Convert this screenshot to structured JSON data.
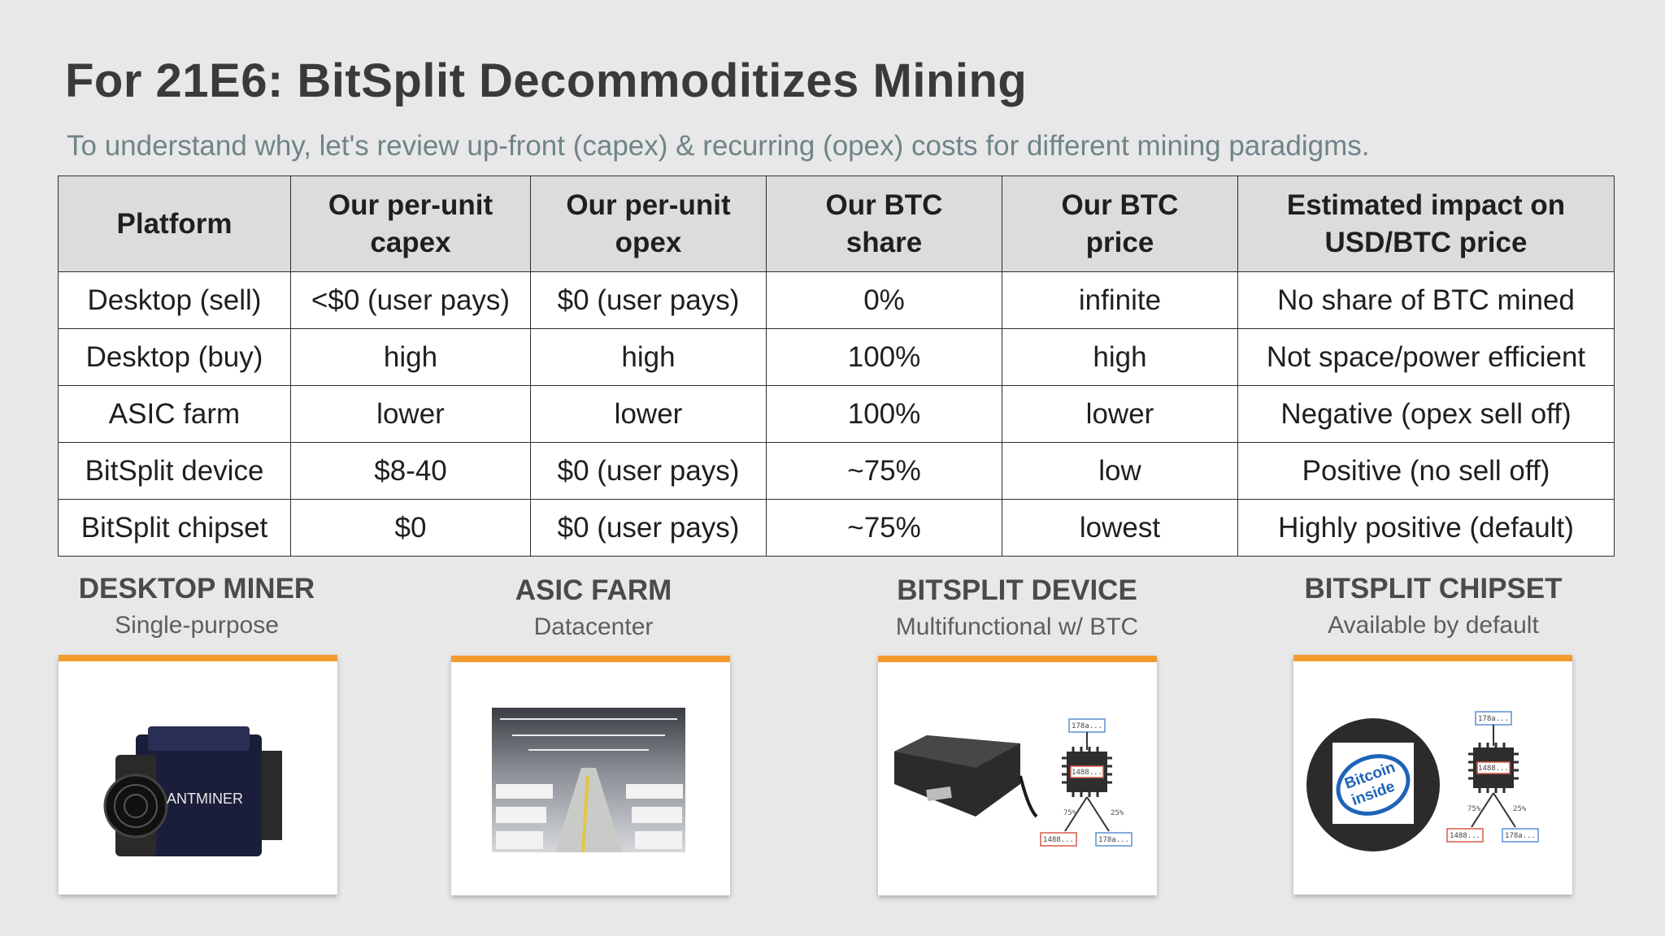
{
  "title": "For 21E6: BitSplit Decommoditizes Mining",
  "subtitle": "To understand why, let's review up-front (capex) & recurring (opex) costs for different mining paradigms.",
  "table": {
    "headers": [
      "Platform",
      "Our per-unit capex",
      "Our per-unit opex",
      "Our BTC share",
      "Our BTC price",
      "Estimated impact on USD/BTC price"
    ],
    "rows": [
      [
        "Desktop (sell)",
        "<$0 (user pays)",
        "$0 (user pays)",
        "0%",
        "infinite",
        "No share of BTC mined"
      ],
      [
        "Desktop (buy)",
        "high",
        "high",
        "100%",
        "high",
        "Not space/power efficient"
      ],
      [
        "ASIC farm",
        "lower",
        "lower",
        "100%",
        "lower",
        "Negative (opex sell off)"
      ],
      [
        "BitSplit device",
        "$8-40",
        "$0 (user pays)",
        "~75%",
        "low",
        "Positive (no sell off)"
      ],
      [
        "BitSplit chipset",
        "$0",
        "$0 (user pays)",
        "~75%",
        "lowest",
        "Highly positive (default)"
      ]
    ]
  },
  "cards": [
    {
      "heading": "DESKTOP MINER",
      "sub": "Single-purpose",
      "image": "antminer-image",
      "logo_text": "ANTMINER"
    },
    {
      "heading": "ASIC FARM",
      "sub": "Datacenter",
      "image": "datacenter-image"
    },
    {
      "heading": "BITSPLIT DEVICE",
      "sub": "Multifunctional w/ BTC",
      "image": "bitsplit-device-image",
      "diagram": {
        "top": "178a...",
        "chip": "1488...",
        "left_pct": "75%",
        "right_pct": "25%",
        "left_box": "1488...",
        "right_box": "178a..."
      }
    },
    {
      "heading": "BITSPLIT CHIPSET",
      "sub": "Available by default",
      "image": "bitcoin-inside-image",
      "badge_line1": "Bitcoin",
      "badge_line2": "inside",
      "diagram": {
        "top": "178a...",
        "chip": "1488...",
        "left_pct": "75%",
        "right_pct": "25%",
        "left_box": "1488...",
        "right_box": "178a..."
      }
    }
  ],
  "colors": {
    "accent": "#f29a2e",
    "header_bg": "#dcdcdc",
    "background": "#e8e8e8",
    "subtitle": "#6f8488"
  }
}
